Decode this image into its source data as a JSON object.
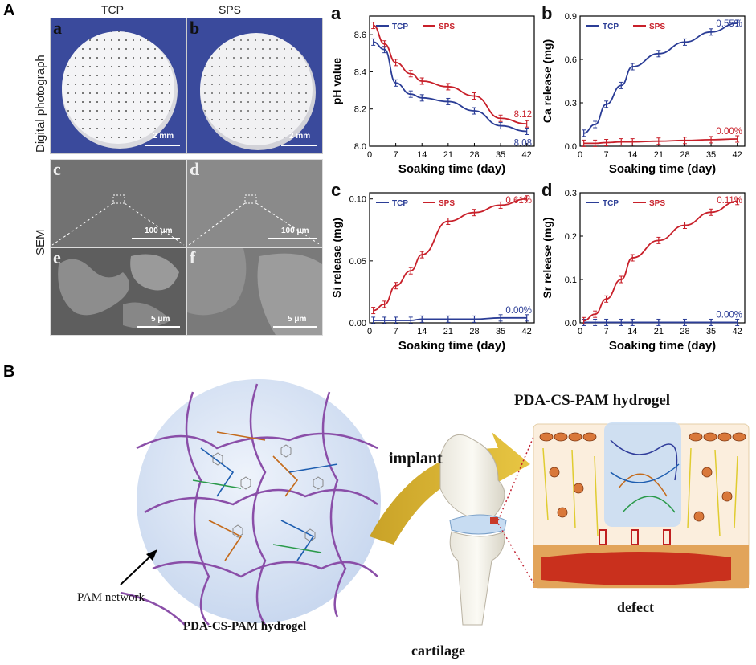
{
  "panel_labels": {
    "A": "A",
    "B": "B"
  },
  "photos": {
    "col_tcp": "TCP",
    "col_sps": "SPS",
    "row_digital": "Digital photograph",
    "row_sem": "SEM",
    "sub_a": "a",
    "sub_b": "b",
    "sub_c": "c",
    "sub_d": "d",
    "sub_e": "e",
    "sub_f": "f",
    "scale_a": "2 mm",
    "scale_b": "2 mm",
    "scale_c": "100 μm",
    "scale_d": "100 μm",
    "scale_e": "5 μm",
    "scale_f": "5 μm"
  },
  "colors": {
    "tcp": "#2b3d96",
    "sps": "#c8202a"
  },
  "chart_data": [
    {
      "id": "ph",
      "type": "line",
      "panel": "a",
      "xlabel": "Soaking time (day)",
      "ylabel": "pH value",
      "x": [
        1,
        4,
        7,
        11,
        14,
        21,
        28,
        35,
        42
      ],
      "xticks": [
        0,
        7,
        14,
        21,
        28,
        35,
        42
      ],
      "ylim": [
        8.0,
        8.7
      ],
      "yticks": [
        "8.0",
        "8.2",
        "8.4",
        "8.6"
      ],
      "series": [
        {
          "name": "TCP",
          "values": [
            8.56,
            8.52,
            8.34,
            8.28,
            8.26,
            8.24,
            8.19,
            8.11,
            8.08
          ],
          "end_label": "8.08"
        },
        {
          "name": "SPS",
          "values": [
            8.65,
            8.55,
            8.45,
            8.39,
            8.35,
            8.32,
            8.27,
            8.15,
            8.12
          ],
          "end_label": "8.12"
        }
      ]
    },
    {
      "id": "ca",
      "type": "line",
      "panel": "b",
      "xlabel": "Soaking time (day)",
      "ylabel": "Ca release (mg)",
      "x": [
        1,
        4,
        7,
        11,
        14,
        21,
        28,
        35,
        42
      ],
      "xticks": [
        0,
        7,
        14,
        21,
        28,
        35,
        42
      ],
      "ylim": [
        0,
        0.9
      ],
      "yticks": [
        "0.0",
        "0.3",
        "0.6",
        "0.9"
      ],
      "series": [
        {
          "name": "TCP",
          "values": [
            0.09,
            0.15,
            0.29,
            0.42,
            0.55,
            0.64,
            0.72,
            0.79,
            0.85
          ],
          "end_label": "0.55%"
        },
        {
          "name": "SPS",
          "values": [
            0.02,
            0.02,
            0.025,
            0.03,
            0.03,
            0.035,
            0.04,
            0.045,
            0.05
          ],
          "end_label": "0.00%"
        }
      ]
    },
    {
      "id": "si",
      "type": "line",
      "panel": "c",
      "xlabel": "Soaking time (day)",
      "ylabel": "Si release (mg)",
      "x": [
        1,
        4,
        7,
        11,
        14,
        21,
        28,
        35,
        42
      ],
      "xticks": [
        0,
        7,
        14,
        21,
        28,
        35,
        42
      ],
      "ylim": [
        0,
        0.105
      ],
      "yticks": [
        "0.00",
        "0.05",
        "0.10"
      ],
      "series": [
        {
          "name": "TCP",
          "values": [
            0.002,
            0.002,
            0.002,
            0.002,
            0.003,
            0.003,
            0.003,
            0.004,
            0.004
          ],
          "end_label": "0.00%"
        },
        {
          "name": "SPS",
          "values": [
            0.01,
            0.015,
            0.03,
            0.042,
            0.055,
            0.082,
            0.089,
            0.095,
            0.1
          ],
          "end_label": "0.61%"
        }
      ]
    },
    {
      "id": "sr",
      "type": "line",
      "panel": "d",
      "xlabel": "Soaking time (day)",
      "ylabel": "Sr release (mg)",
      "x": [
        1,
        4,
        7,
        11,
        14,
        21,
        28,
        35,
        42
      ],
      "xticks": [
        0,
        7,
        14,
        21,
        28,
        35,
        42
      ],
      "ylim": [
        0,
        0.3
      ],
      "yticks": [
        "0.0",
        "0.1",
        "0.2",
        "0.3"
      ],
      "series": [
        {
          "name": "TCP",
          "values": [
            0.001,
            0.001,
            0.001,
            0.001,
            0.001,
            0.001,
            0.001,
            0.001,
            0.001
          ],
          "end_label": "0.00%"
        },
        {
          "name": "SPS",
          "values": [
            0.005,
            0.02,
            0.055,
            0.1,
            0.15,
            0.19,
            0.225,
            0.255,
            0.28
          ],
          "end_label": "0.11%"
        }
      ]
    }
  ],
  "diagram": {
    "title_right": "PDA-CS-PAM hydrogel",
    "title_left_bottom": "PDA-CS-PAM hydrogel",
    "pam_network": "PAM network",
    "implant": "implant",
    "cartilage": "cartilage",
    "defect": "defect"
  }
}
